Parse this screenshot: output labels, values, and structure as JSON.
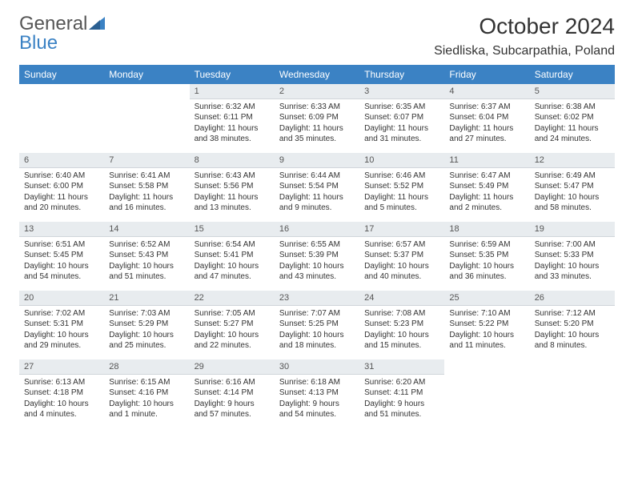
{
  "logo": {
    "word1": "General",
    "word2": "Blue"
  },
  "title": "October 2024",
  "location": "Siedliska, Subcarpathia, Poland",
  "colors": {
    "header_bg": "#3b82c4",
    "header_text": "#ffffff",
    "daynum_bg": "#e8ecef",
    "text": "#333333",
    "logo_gray": "#555555",
    "logo_blue": "#3b82c4"
  },
  "dayNames": [
    "Sunday",
    "Monday",
    "Tuesday",
    "Wednesday",
    "Thursday",
    "Friday",
    "Saturday"
  ],
  "weeks": [
    [
      null,
      null,
      {
        "n": "1",
        "sr": "6:32 AM",
        "ss": "6:11 PM",
        "dl": "11 hours and 38 minutes."
      },
      {
        "n": "2",
        "sr": "6:33 AM",
        "ss": "6:09 PM",
        "dl": "11 hours and 35 minutes."
      },
      {
        "n": "3",
        "sr": "6:35 AM",
        "ss": "6:07 PM",
        "dl": "11 hours and 31 minutes."
      },
      {
        "n": "4",
        "sr": "6:37 AM",
        "ss": "6:04 PM",
        "dl": "11 hours and 27 minutes."
      },
      {
        "n": "5",
        "sr": "6:38 AM",
        "ss": "6:02 PM",
        "dl": "11 hours and 24 minutes."
      }
    ],
    [
      {
        "n": "6",
        "sr": "6:40 AM",
        "ss": "6:00 PM",
        "dl": "11 hours and 20 minutes."
      },
      {
        "n": "7",
        "sr": "6:41 AM",
        "ss": "5:58 PM",
        "dl": "11 hours and 16 minutes."
      },
      {
        "n": "8",
        "sr": "6:43 AM",
        "ss": "5:56 PM",
        "dl": "11 hours and 13 minutes."
      },
      {
        "n": "9",
        "sr": "6:44 AM",
        "ss": "5:54 PM",
        "dl": "11 hours and 9 minutes."
      },
      {
        "n": "10",
        "sr": "6:46 AM",
        "ss": "5:52 PM",
        "dl": "11 hours and 5 minutes."
      },
      {
        "n": "11",
        "sr": "6:47 AM",
        "ss": "5:49 PM",
        "dl": "11 hours and 2 minutes."
      },
      {
        "n": "12",
        "sr": "6:49 AM",
        "ss": "5:47 PM",
        "dl": "10 hours and 58 minutes."
      }
    ],
    [
      {
        "n": "13",
        "sr": "6:51 AM",
        "ss": "5:45 PM",
        "dl": "10 hours and 54 minutes."
      },
      {
        "n": "14",
        "sr": "6:52 AM",
        "ss": "5:43 PM",
        "dl": "10 hours and 51 minutes."
      },
      {
        "n": "15",
        "sr": "6:54 AM",
        "ss": "5:41 PM",
        "dl": "10 hours and 47 minutes."
      },
      {
        "n": "16",
        "sr": "6:55 AM",
        "ss": "5:39 PM",
        "dl": "10 hours and 43 minutes."
      },
      {
        "n": "17",
        "sr": "6:57 AM",
        "ss": "5:37 PM",
        "dl": "10 hours and 40 minutes."
      },
      {
        "n": "18",
        "sr": "6:59 AM",
        "ss": "5:35 PM",
        "dl": "10 hours and 36 minutes."
      },
      {
        "n": "19",
        "sr": "7:00 AM",
        "ss": "5:33 PM",
        "dl": "10 hours and 33 minutes."
      }
    ],
    [
      {
        "n": "20",
        "sr": "7:02 AM",
        "ss": "5:31 PM",
        "dl": "10 hours and 29 minutes."
      },
      {
        "n": "21",
        "sr": "7:03 AM",
        "ss": "5:29 PM",
        "dl": "10 hours and 25 minutes."
      },
      {
        "n": "22",
        "sr": "7:05 AM",
        "ss": "5:27 PM",
        "dl": "10 hours and 22 minutes."
      },
      {
        "n": "23",
        "sr": "7:07 AM",
        "ss": "5:25 PM",
        "dl": "10 hours and 18 minutes."
      },
      {
        "n": "24",
        "sr": "7:08 AM",
        "ss": "5:23 PM",
        "dl": "10 hours and 15 minutes."
      },
      {
        "n": "25",
        "sr": "7:10 AM",
        "ss": "5:22 PM",
        "dl": "10 hours and 11 minutes."
      },
      {
        "n": "26",
        "sr": "7:12 AM",
        "ss": "5:20 PM",
        "dl": "10 hours and 8 minutes."
      }
    ],
    [
      {
        "n": "27",
        "sr": "6:13 AM",
        "ss": "4:18 PM",
        "dl": "10 hours and 4 minutes."
      },
      {
        "n": "28",
        "sr": "6:15 AM",
        "ss": "4:16 PM",
        "dl": "10 hours and 1 minute."
      },
      {
        "n": "29",
        "sr": "6:16 AM",
        "ss": "4:14 PM",
        "dl": "9 hours and 57 minutes."
      },
      {
        "n": "30",
        "sr": "6:18 AM",
        "ss": "4:13 PM",
        "dl": "9 hours and 54 minutes."
      },
      {
        "n": "31",
        "sr": "6:20 AM",
        "ss": "4:11 PM",
        "dl": "9 hours and 51 minutes."
      },
      null,
      null
    ]
  ],
  "labels": {
    "sunrise": "Sunrise:",
    "sunset": "Sunset:",
    "daylight": "Daylight:"
  }
}
